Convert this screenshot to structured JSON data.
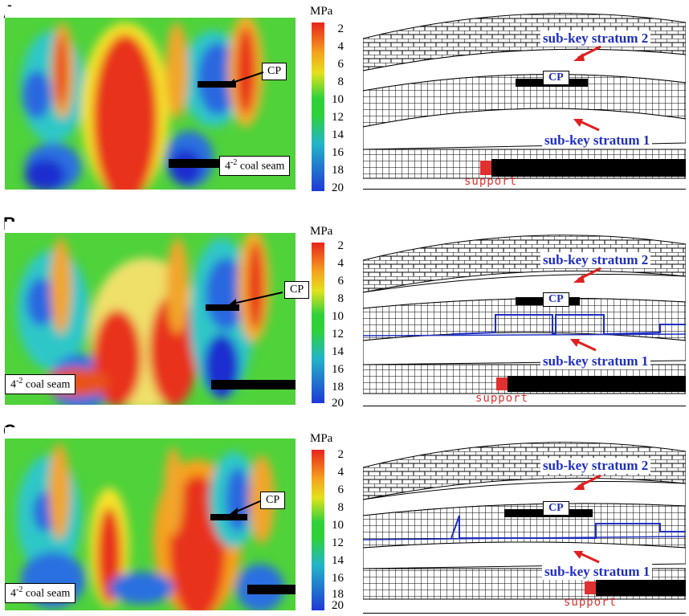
{
  "panels": [
    {
      "letter": "A",
      "coal_label_main": "4",
      "coal_label_sup": "-2",
      "coal_label_rest": " coal seam",
      "cp": "CP"
    },
    {
      "letter": "B",
      "coal_label_main": "4",
      "coal_label_sup": "-2",
      "coal_label_rest": " coal seam",
      "cp": "CP"
    },
    {
      "letter": "C",
      "coal_label_main": "4",
      "coal_label_sup": "-2",
      "coal_label_rest": " coal seam",
      "cp": "CP"
    }
  ],
  "scale": {
    "unit": "MPa",
    "ticks": [
      "2",
      "4",
      "6",
      "8",
      "10",
      "12",
      "14",
      "16",
      "18",
      "20"
    ],
    "colors": [
      "#e8231c",
      "#f6a21d",
      "#e2e21c",
      "#2fd13b",
      "#22b5c8",
      "#1f38d6"
    ]
  },
  "model": {
    "upper_label": "sub-key stratum 2",
    "lower_label": "sub-key stratum 1",
    "cp_label": "CP",
    "support_label": "support",
    "block_color": "#000000",
    "load_color": "#1f2fbf",
    "arrow_color": "#e02020"
  }
}
